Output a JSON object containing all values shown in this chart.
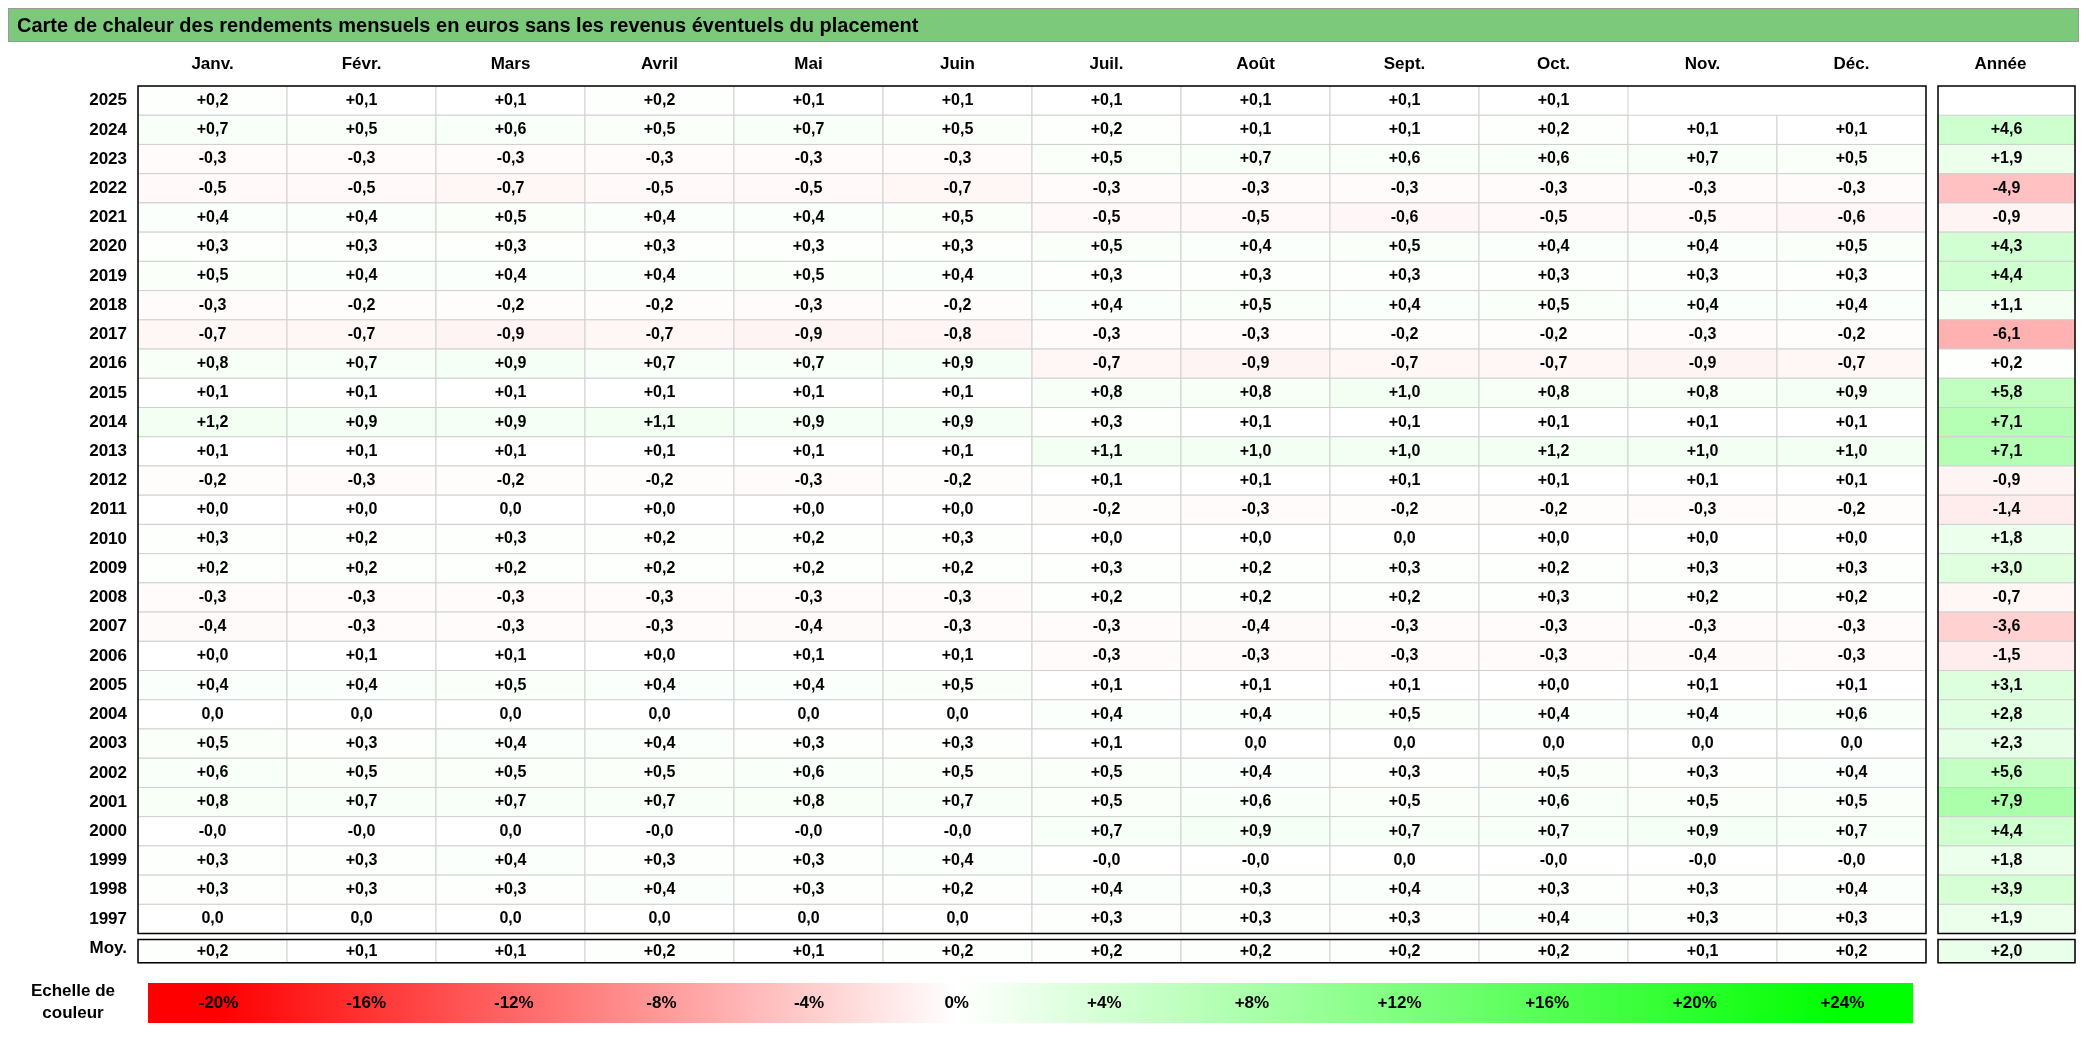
{
  "chart_data": {
    "type": "heatmap",
    "title": "Carte de chaleur des rendements mensuels en euros sans les revenus éventuels du placement",
    "clabel": "Echelle de couleur",
    "clim": [
      -20,
      24
    ],
    "cticks": [
      {
        "value": -20,
        "label": "-20%"
      },
      {
        "value": -16,
        "label": "-16%"
      },
      {
        "value": -12,
        "label": "-12%"
      },
      {
        "value": -8,
        "label": "-8%"
      },
      {
        "value": -4,
        "label": "-4%"
      },
      {
        "value": 0,
        "label": "0%"
      },
      {
        "value": 4,
        "label": "+4%"
      },
      {
        "value": 8,
        "label": "+8%"
      },
      {
        "value": 12,
        "label": "+12%"
      },
      {
        "value": 16,
        "label": "+16%"
      },
      {
        "value": 20,
        "label": "+20%"
      },
      {
        "value": 24,
        "label": "+24%"
      }
    ],
    "categories": [
      "Janv.",
      "Févr.",
      "Mars",
      "Avril",
      "Mai",
      "Juin",
      "Juil.",
      "Août",
      "Sept.",
      "Oct.",
      "Nov.",
      "Déc.",
      "Année"
    ],
    "y_categories": [
      "2025",
      "2024",
      "2023",
      "2022",
      "2021",
      "2020",
      "2019",
      "2018",
      "2017",
      "2016",
      "2015",
      "2014",
      "2013",
      "2012",
      "2011",
      "2010",
      "2009",
      "2008",
      "2007",
      "2006",
      "2005",
      "2004",
      "2003",
      "2002",
      "2001",
      "2000",
      "1999",
      "1998",
      "1997",
      "Moy."
    ],
    "cells": [
      [
        0.2,
        0.1,
        0.1,
        0.2,
        0.1,
        0.1,
        0.1,
        0.1,
        0.1,
        0.1,
        null,
        null,
        null
      ],
      [
        0.7,
        0.5,
        0.6,
        0.5,
        0.7,
        0.5,
        0.2,
        0.1,
        0.1,
        0.2,
        0.1,
        0.1,
        4.6
      ],
      [
        -0.3,
        -0.3,
        -0.3,
        -0.3,
        -0.3,
        -0.3,
        0.5,
        0.7,
        0.6,
        0.6,
        0.7,
        0.5,
        1.9
      ],
      [
        -0.5,
        -0.5,
        -0.7,
        -0.5,
        -0.5,
        -0.7,
        -0.3,
        -0.3,
        -0.3,
        -0.3,
        -0.3,
        -0.3,
        -4.9
      ],
      [
        0.4,
        0.4,
        0.5,
        0.4,
        0.4,
        0.5,
        -0.5,
        -0.5,
        -0.6,
        -0.5,
        -0.5,
        -0.6,
        -0.9
      ],
      [
        0.3,
        0.3,
        0.3,
        0.3,
        0.3,
        0.3,
        0.5,
        0.4,
        0.5,
        0.4,
        0.4,
        0.5,
        4.3
      ],
      [
        0.5,
        0.4,
        0.4,
        0.4,
        0.5,
        0.4,
        0.3,
        0.3,
        0.3,
        0.3,
        0.3,
        0.3,
        4.4
      ],
      [
        -0.3,
        -0.2,
        -0.2,
        -0.2,
        -0.3,
        -0.2,
        0.4,
        0.5,
        0.4,
        0.5,
        0.4,
        0.4,
        1.1
      ],
      [
        -0.7,
        -0.7,
        -0.9,
        -0.7,
        -0.9,
        -0.8,
        -0.3,
        -0.3,
        -0.2,
        -0.2,
        -0.3,
        -0.2,
        -6.1
      ],
      [
        0.8,
        0.7,
        0.9,
        0.7,
        0.7,
        0.9,
        -0.7,
        -0.9,
        -0.7,
        -0.7,
        -0.9,
        -0.7,
        0.2
      ],
      [
        0.1,
        0.1,
        0.1,
        0.1,
        0.1,
        0.1,
        0.8,
        0.8,
        1.0,
        0.8,
        0.8,
        0.9,
        5.8
      ],
      [
        1.2,
        0.9,
        0.9,
        1.1,
        0.9,
        0.9,
        0.3,
        0.1,
        0.1,
        0.1,
        0.1,
        0.1,
        7.1
      ],
      [
        0.1,
        0.1,
        0.1,
        0.1,
        0.1,
        0.1,
        1.1,
        1.0,
        1.0,
        1.2,
        1.0,
        1.0,
        7.1
      ],
      [
        -0.2,
        -0.3,
        -0.2,
        -0.2,
        -0.3,
        -0.2,
        0.1,
        0.1,
        0.1,
        0.1,
        0.1,
        0.1,
        -0.9
      ],
      [
        0,
        0,
        0,
        0,
        0,
        0,
        -0.2,
        -0.3,
        -0.2,
        -0.2,
        -0.3,
        -0.2,
        -1.4
      ],
      [
        0.3,
        0.2,
        0.3,
        0.2,
        0.2,
        0.3,
        0,
        0,
        0,
        0,
        0,
        0,
        1.8
      ],
      [
        0.2,
        0.2,
        0.2,
        0.2,
        0.2,
        0.2,
        0.3,
        0.2,
        0.3,
        0.2,
        0.3,
        0.3,
        3.0
      ],
      [
        -0.3,
        -0.3,
        -0.3,
        -0.3,
        -0.3,
        -0.3,
        0.2,
        0.2,
        0.2,
        0.3,
        0.2,
        0.2,
        -0.7
      ],
      [
        -0.4,
        -0.3,
        -0.3,
        -0.3,
        -0.4,
        -0.3,
        -0.3,
        -0.4,
        -0.3,
        -0.3,
        -0.3,
        -0.3,
        -3.6
      ],
      [
        0,
        0.1,
        0.1,
        0,
        0.1,
        0.1,
        -0.3,
        -0.3,
        -0.3,
        -0.3,
        -0.4,
        -0.3,
        -1.5
      ],
      [
        0.4,
        0.4,
        0.5,
        0.4,
        0.4,
        0.5,
        0.1,
        0.1,
        0.1,
        0,
        0.1,
        0.1,
        3.1
      ],
      [
        0,
        0,
        0,
        0,
        0,
        0,
        0.4,
        0.4,
        0.5,
        0.4,
        0.4,
        0.6,
        2.8
      ],
      [
        0.5,
        0.3,
        0.4,
        0.4,
        0.3,
        0.3,
        0.1,
        0,
        0,
        0,
        0,
        0,
        2.3
      ],
      [
        0.6,
        0.5,
        0.5,
        0.5,
        0.6,
        0.5,
        0.5,
        0.4,
        0.3,
        0.5,
        0.3,
        0.4,
        5.6
      ],
      [
        0.8,
        0.7,
        0.7,
        0.7,
        0.8,
        0.7,
        0.5,
        0.6,
        0.5,
        0.6,
        0.5,
        0.5,
        7.9
      ],
      [
        0,
        0,
        0,
        0,
        0,
        0,
        0.7,
        0.9,
        0.7,
        0.7,
        0.9,
        0.7,
        4.4
      ],
      [
        0.3,
        0.3,
        0.4,
        0.3,
        0.3,
        0.4,
        0,
        0,
        0,
        0,
        0,
        0,
        1.8
      ],
      [
        0.3,
        0.3,
        0.3,
        0.4,
        0.3,
        0.2,
        0.4,
        0.3,
        0.4,
        0.3,
        0.3,
        0.4,
        3.9
      ],
      [
        0,
        0,
        0,
        0,
        0,
        0,
        0.3,
        0.3,
        0.3,
        0.4,
        0.3,
        0.3,
        1.9
      ],
      [
        0.2,
        0.1,
        0.1,
        0.2,
        0.1,
        0.2,
        0.2,
        0.2,
        0.2,
        0.2,
        0.1,
        0.2,
        2.0
      ]
    ],
    "cell_labels": [
      [
        "+0,2",
        "+0,1",
        "+0,1",
        "+0,2",
        "+0,1",
        "+0,1",
        "+0,1",
        "+0,1",
        "+0,1",
        "+0,1",
        null,
        null,
        null
      ],
      [
        "+0,7",
        "+0,5",
        "+0,6",
        "+0,5",
        "+0,7",
        "+0,5",
        "+0,2",
        "+0,1",
        "+0,1",
        "+0,2",
        "+0,1",
        "+0,1",
        "+4,6"
      ],
      [
        "-0,3",
        "-0,3",
        "-0,3",
        "-0,3",
        "-0,3",
        "-0,3",
        "+0,5",
        "+0,7",
        "+0,6",
        "+0,6",
        "+0,7",
        "+0,5",
        "+1,9"
      ],
      [
        "-0,5",
        "-0,5",
        "-0,7",
        "-0,5",
        "-0,5",
        "-0,7",
        "-0,3",
        "-0,3",
        "-0,3",
        "-0,3",
        "-0,3",
        "-0,3",
        "-4,9"
      ],
      [
        "+0,4",
        "+0,4",
        "+0,5",
        "+0,4",
        "+0,4",
        "+0,5",
        "-0,5",
        "-0,5",
        "-0,6",
        "-0,5",
        "-0,5",
        "-0,6",
        "-0,9"
      ],
      [
        "+0,3",
        "+0,3",
        "+0,3",
        "+0,3",
        "+0,3",
        "+0,3",
        "+0,5",
        "+0,4",
        "+0,5",
        "+0,4",
        "+0,4",
        "+0,5",
        "+4,3"
      ],
      [
        "+0,5",
        "+0,4",
        "+0,4",
        "+0,4",
        "+0,5",
        "+0,4",
        "+0,3",
        "+0,3",
        "+0,3",
        "+0,3",
        "+0,3",
        "+0,3",
        "+4,4"
      ],
      [
        "-0,3",
        "-0,2",
        "-0,2",
        "-0,2",
        "-0,3",
        "-0,2",
        "+0,4",
        "+0,5",
        "+0,4",
        "+0,5",
        "+0,4",
        "+0,4",
        "+1,1"
      ],
      [
        "-0,7",
        "-0,7",
        "-0,9",
        "-0,7",
        "-0,9",
        "-0,8",
        "-0,3",
        "-0,3",
        "-0,2",
        "-0,2",
        "-0,3",
        "-0,2",
        "-6,1"
      ],
      [
        "+0,8",
        "+0,7",
        "+0,9",
        "+0,7",
        "+0,7",
        "+0,9",
        "-0,7",
        "-0,9",
        "-0,7",
        "-0,7",
        "-0,9",
        "-0,7",
        "+0,2"
      ],
      [
        "+0,1",
        "+0,1",
        "+0,1",
        "+0,1",
        "+0,1",
        "+0,1",
        "+0,8",
        "+0,8",
        "+1,0",
        "+0,8",
        "+0,8",
        "+0,9",
        "+5,8"
      ],
      [
        "+1,2",
        "+0,9",
        "+0,9",
        "+1,1",
        "+0,9",
        "+0,9",
        "+0,3",
        "+0,1",
        "+0,1",
        "+0,1",
        "+0,1",
        "+0,1",
        "+7,1"
      ],
      [
        "+0,1",
        "+0,1",
        "+0,1",
        "+0,1",
        "+0,1",
        "+0,1",
        "+1,1",
        "+1,0",
        "+1,0",
        "+1,2",
        "+1,0",
        "+1,0",
        "+7,1"
      ],
      [
        "-0,2",
        "-0,3",
        "-0,2",
        "-0,2",
        "-0,3",
        "-0,2",
        "+0,1",
        "+0,1",
        "+0,1",
        "+0,1",
        "+0,1",
        "+0,1",
        "-0,9"
      ],
      [
        "+0,0",
        "+0,0",
        "0,0",
        "+0,0",
        "+0,0",
        "+0,0",
        "-0,2",
        "-0,3",
        "-0,2",
        "-0,2",
        "-0,3",
        "-0,2",
        "-1,4"
      ],
      [
        "+0,3",
        "+0,2",
        "+0,3",
        "+0,2",
        "+0,2",
        "+0,3",
        "+0,0",
        "+0,0",
        "0,0",
        "+0,0",
        "+0,0",
        "+0,0",
        "+1,8"
      ],
      [
        "+0,2",
        "+0,2",
        "+0,2",
        "+0,2",
        "+0,2",
        "+0,2",
        "+0,3",
        "+0,2",
        "+0,3",
        "+0,2",
        "+0,3",
        "+0,3",
        "+3,0"
      ],
      [
        "-0,3",
        "-0,3",
        "-0,3",
        "-0,3",
        "-0,3",
        "-0,3",
        "+0,2",
        "+0,2",
        "+0,2",
        "+0,3",
        "+0,2",
        "+0,2",
        "-0,7"
      ],
      [
        "-0,4",
        "-0,3",
        "-0,3",
        "-0,3",
        "-0,4",
        "-0,3",
        "-0,3",
        "-0,4",
        "-0,3",
        "-0,3",
        "-0,3",
        "-0,3",
        "-3,6"
      ],
      [
        "+0,0",
        "+0,1",
        "+0,1",
        "+0,0",
        "+0,1",
        "+0,1",
        "-0,3",
        "-0,3",
        "-0,3",
        "-0,3",
        "-0,4",
        "-0,3",
        "-1,5"
      ],
      [
        "+0,4",
        "+0,4",
        "+0,5",
        "+0,4",
        "+0,4",
        "+0,5",
        "+0,1",
        "+0,1",
        "+0,1",
        "+0,0",
        "+0,1",
        "+0,1",
        "+3,1"
      ],
      [
        "0,0",
        "0,0",
        "0,0",
        "0,0",
        "0,0",
        "0,0",
        "+0,4",
        "+0,4",
        "+0,5",
        "+0,4",
        "+0,4",
        "+0,6",
        "+2,8"
      ],
      [
        "+0,5",
        "+0,3",
        "+0,4",
        "+0,4",
        "+0,3",
        "+0,3",
        "+0,1",
        "0,0",
        "0,0",
        "0,0",
        "0,0",
        "0,0",
        "+2,3"
      ],
      [
        "+0,6",
        "+0,5",
        "+0,5",
        "+0,5",
        "+0,6",
        "+0,5",
        "+0,5",
        "+0,4",
        "+0,3",
        "+0,5",
        "+0,3",
        "+0,4",
        "+5,6"
      ],
      [
        "+0,8",
        "+0,7",
        "+0,7",
        "+0,7",
        "+0,8",
        "+0,7",
        "+0,5",
        "+0,6",
        "+0,5",
        "+0,6",
        "+0,5",
        "+0,5",
        "+7,9"
      ],
      [
        "-0,0",
        "-0,0",
        "0,0",
        "-0,0",
        "-0,0",
        "-0,0",
        "+0,7",
        "+0,9",
        "+0,7",
        "+0,7",
        "+0,9",
        "+0,7",
        "+4,4"
      ],
      [
        "+0,3",
        "+0,3",
        "+0,4",
        "+0,3",
        "+0,3",
        "+0,4",
        "-0,0",
        "-0,0",
        "0,0",
        "-0,0",
        "-0,0",
        "-0,0",
        "+1,8"
      ],
      [
        "+0,3",
        "+0,3",
        "+0,3",
        "+0,4",
        "+0,3",
        "+0,2",
        "+0,4",
        "+0,3",
        "+0,4",
        "+0,3",
        "+0,3",
        "+0,4",
        "+3,9"
      ],
      [
        "0,0",
        "0,0",
        "0,0",
        "0,0",
        "0,0",
        "0,0",
        "+0,3",
        "+0,3",
        "+0,3",
        "+0,4",
        "+0,3",
        "+0,3",
        "+1,9"
      ],
      [
        "+0,2",
        "+0,1",
        "+0,1",
        "+0,2",
        "+0,1",
        "+0,2",
        "+0,2",
        "+0,2",
        "+0,2",
        "+0,2",
        "+0,1",
        "+0,2",
        "+2,0"
      ]
    ]
  }
}
